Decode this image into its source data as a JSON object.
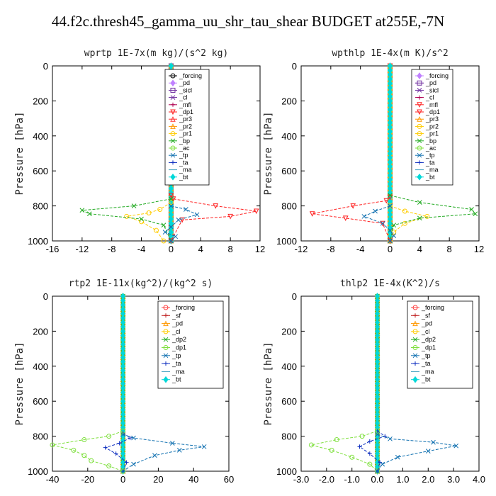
{
  "title": "44.f2c.thresh45_gamma_uu_shr_tau_shear  BUDGET at255E,-7N",
  "chart_data": [
    {
      "type": "line",
      "title": "wprtp   1E-7x(m kg)/(s^2 kg)",
      "ylabel": "Pressure [hPa]",
      "xlim": [
        -16,
        12
      ],
      "ylim": [
        1000,
        0
      ],
      "xticks": [
        -16,
        -12,
        -8,
        -4,
        0,
        4,
        8,
        12
      ],
      "yticks": [
        0,
        200,
        400,
        600,
        800,
        1000
      ],
      "legend_position": "top-right",
      "series": [
        {
          "name": "_forcing",
          "color": "#000000",
          "marker": "o",
          "x": [
            0,
            0
          ],
          "y": [
            0,
            1000
          ]
        },
        {
          "name": "_pd",
          "color": "#c080ff",
          "marker": "d",
          "x": [
            0,
            0
          ],
          "y": [
            0,
            1000
          ]
        },
        {
          "name": "_sicl",
          "color": "#7030a0",
          "marker": "s",
          "x": [
            0,
            0
          ],
          "y": [
            0,
            1000
          ]
        },
        {
          "name": "_cl",
          "color": "#7030a0",
          "marker": "x",
          "x": [
            0,
            0
          ],
          "y": [
            0,
            1000
          ]
        },
        {
          "name": "_mfl",
          "color": "#b00050",
          "marker": "+",
          "x": [
            0,
            0
          ],
          "y": [
            0,
            1000
          ]
        },
        {
          "name": "_dp1",
          "color": "#ff2020",
          "marker": "v",
          "x": [
            0,
            0.3,
            6,
            11.5,
            8,
            1.5,
            0
          ],
          "y": [
            740,
            760,
            800,
            830,
            860,
            880,
            1000
          ]
        },
        {
          "name": "_pr3",
          "color": "#ff3030",
          "marker": "^",
          "x": [
            0,
            0
          ],
          "y": [
            0,
            1000
          ]
        },
        {
          "name": "_pr2",
          "color": "#ff9900",
          "marker": "^",
          "x": [
            0,
            0
          ],
          "y": [
            0,
            1000
          ]
        },
        {
          "name": "_pr1",
          "color": "#ffcc00",
          "marker": "o",
          "x": [
            0,
            -1.5,
            -3,
            -6,
            -4,
            -2,
            -1
          ],
          "y": [
            780,
            820,
            840,
            860,
            890,
            940,
            1000
          ]
        },
        {
          "name": "_bp",
          "color": "#22aa22",
          "marker": "x",
          "x": [
            0,
            -5,
            -12,
            -11,
            -4,
            -1,
            0
          ],
          "y": [
            760,
            800,
            825,
            845,
            875,
            910,
            1000
          ]
        },
        {
          "name": "_ac",
          "color": "#80e040",
          "marker": "o",
          "x": [
            0,
            0
          ],
          "y": [
            0,
            1000
          ]
        },
        {
          "name": "_tp",
          "color": "#1070b0",
          "marker": "x",
          "x": [
            0,
            2,
            3.5,
            1,
            0,
            -0.8,
            0.6,
            0
          ],
          "y": [
            800,
            820,
            850,
            880,
            920,
            950,
            975,
            1000
          ]
        },
        {
          "name": "_ta",
          "color": "#1030c0",
          "marker": "+",
          "x": [
            0,
            0
          ],
          "y": [
            0,
            1000
          ]
        },
        {
          "name": "_ma",
          "color": "#40a0c0",
          "marker": "-",
          "x": [
            0,
            0
          ],
          "y": [
            0,
            1000
          ]
        },
        {
          "name": "_bt",
          "color": "#00d8d8",
          "marker": "d",
          "x": [
            0,
            0
          ],
          "y": [
            0,
            1000
          ]
        }
      ]
    },
    {
      "type": "line",
      "title": "wpthlp   1E-4x(m K)/s^2",
      "ylabel": "Pressure [hPa]",
      "xlim": [
        -12,
        12
      ],
      "ylim": [
        1000,
        0
      ],
      "xticks": [
        -12,
        -8,
        -4,
        0,
        4,
        8,
        12
      ],
      "yticks": [
        0,
        200,
        400,
        600,
        800,
        1000
      ],
      "legend_position": "top-right",
      "series": [
        {
          "name": "_forcing",
          "color": "#c080ff",
          "marker": "d",
          "x": [
            0,
            0
          ],
          "y": [
            0,
            1000
          ]
        },
        {
          "name": "_pd",
          "color": "#7030a0",
          "marker": "s",
          "x": [
            0,
            0
          ],
          "y": [
            0,
            1000
          ]
        },
        {
          "name": "_sicl",
          "color": "#7030a0",
          "marker": "x",
          "x": [
            0,
            0
          ],
          "y": [
            0,
            1000
          ]
        },
        {
          "name": "_cl",
          "color": "#b00050",
          "marker": "+",
          "x": [
            0,
            0
          ],
          "y": [
            0,
            1000
          ]
        },
        {
          "name": "_mfl",
          "color": "#ff2020",
          "marker": "v",
          "x": [
            0,
            0
          ],
          "y": [
            0,
            1000
          ]
        },
        {
          "name": "_dp1",
          "color": "#ff2020",
          "marker": "v",
          "x": [
            0,
            -0.5,
            -5,
            -10.5,
            -6,
            -1,
            0
          ],
          "y": [
            750,
            770,
            800,
            845,
            870,
            900,
            1000
          ]
        },
        {
          "name": "_pr3",
          "color": "#ff9900",
          "marker": "^",
          "x": [
            0,
            0
          ],
          "y": [
            0,
            1000
          ]
        },
        {
          "name": "_pr2",
          "color": "#ffcc00",
          "marker": "o",
          "x": [
            0,
            0
          ],
          "y": [
            0,
            1000
          ]
        },
        {
          "name": "_pr1",
          "color": "#ffcc00",
          "marker": "o",
          "x": [
            0,
            2,
            5,
            2,
            0.5,
            0
          ],
          "y": [
            800,
            830,
            860,
            900,
            950,
            1000
          ]
        },
        {
          "name": "_bp",
          "color": "#22aa22",
          "marker": "x",
          "x": [
            0,
            4,
            11,
            11.5,
            4,
            0.5,
            0
          ],
          "y": [
            740,
            780,
            820,
            845,
            870,
            910,
            1000
          ]
        },
        {
          "name": "_ac",
          "color": "#80e040",
          "marker": "o",
          "x": [
            0,
            0
          ],
          "y": [
            0,
            1000
          ]
        },
        {
          "name": "_tp",
          "color": "#1070b0",
          "marker": "x",
          "x": [
            0,
            -2,
            -3.5,
            -1,
            0,
            0.5,
            0
          ],
          "y": [
            800,
            830,
            860,
            900,
            940,
            970,
            1000
          ]
        },
        {
          "name": "_ta",
          "color": "#1030c0",
          "marker": "+",
          "x": [
            0,
            0
          ],
          "y": [
            0,
            1000
          ]
        },
        {
          "name": "_ma",
          "color": "#40a0c0",
          "marker": "-",
          "x": [
            0,
            0
          ],
          "y": [
            0,
            1000
          ]
        },
        {
          "name": "_bt",
          "color": "#00d8d8",
          "marker": "d",
          "x": [
            0,
            0
          ],
          "y": [
            0,
            1000
          ]
        }
      ]
    },
    {
      "type": "line",
      "title": "rtp2   1E-11x(kg^2)/(kg^2 s)",
      "ylabel": "Pressure [hPa]",
      "xlim": [
        -40,
        60
      ],
      "ylim": [
        1000,
        0
      ],
      "xticks": [
        -40,
        -20,
        0,
        20,
        40,
        60
      ],
      "yticks": [
        0,
        200,
        400,
        600,
        800,
        1000
      ],
      "legend_position": "top-right",
      "series": [
        {
          "name": "_forcing",
          "color": "#ff4040",
          "marker": "o",
          "x": [
            0,
            0
          ],
          "y": [
            0,
            1000
          ]
        },
        {
          "name": "_sf",
          "color": "#c02020",
          "marker": "+",
          "x": [
            0,
            0
          ],
          "y": [
            0,
            1000
          ]
        },
        {
          "name": "_pd",
          "color": "#ff9900",
          "marker": "^",
          "x": [
            0,
            0
          ],
          "y": [
            0,
            1000
          ]
        },
        {
          "name": "_cl",
          "color": "#ffcc00",
          "marker": "o",
          "x": [
            0,
            0
          ],
          "y": [
            0,
            1000
          ]
        },
        {
          "name": "_dp2",
          "color": "#22aa22",
          "marker": "x",
          "x": [
            0,
            0
          ],
          "y": [
            0,
            1000
          ]
        },
        {
          "name": "_dp1",
          "color": "#80e040",
          "marker": "o",
          "x": [
            0,
            -8,
            -22,
            -40,
            -28,
            -22,
            -18,
            -8,
            0
          ],
          "y": [
            770,
            800,
            820,
            850,
            880,
            910,
            940,
            970,
            1000
          ]
        },
        {
          "name": "_tp",
          "color": "#1070b0",
          "marker": "x",
          "x": [
            0,
            6,
            28,
            46,
            32,
            18,
            6,
            0
          ],
          "y": [
            790,
            810,
            840,
            860,
            880,
            910,
            960,
            1000
          ]
        },
        {
          "name": "_ta",
          "color": "#1030c0",
          "marker": "+",
          "x": [
            0,
            4,
            -2,
            -10,
            -4,
            2,
            0
          ],
          "y": [
            780,
            810,
            840,
            865,
            900,
            950,
            1000
          ]
        },
        {
          "name": "_ma",
          "color": "#40a0c0",
          "marker": "-",
          "x": [
            0,
            0
          ],
          "y": [
            0,
            1000
          ]
        },
        {
          "name": "_bt",
          "color": "#00d8d8",
          "marker": "d",
          "x": [
            0,
            0
          ],
          "y": [
            0,
            1000
          ]
        }
      ]
    },
    {
      "type": "line",
      "title": "thlp2   1E-4x(K^2)/s",
      "ylabel": "Pressure [hPa]",
      "xlim": [
        -3.0,
        4.0
      ],
      "ylim": [
        1000,
        0
      ],
      "xticks": [
        -3.0,
        -2.0,
        -1.0,
        0.0,
        1.0,
        2.0,
        3.0,
        4.0
      ],
      "xticklabels": [
        "-3.0",
        "-2.0",
        "-1.0",
        "0.0",
        "1.0",
        "2.0",
        "3.0",
        "4.0"
      ],
      "yticks": [
        0,
        200,
        400,
        600,
        800,
        1000
      ],
      "legend_position": "top-right",
      "series": [
        {
          "name": "_forcing",
          "color": "#ff4040",
          "marker": "o",
          "x": [
            0,
            0
          ],
          "y": [
            0,
            1000
          ]
        },
        {
          "name": "_sf",
          "color": "#c02020",
          "marker": "+",
          "x": [
            0,
            0
          ],
          "y": [
            0,
            1000
          ]
        },
        {
          "name": "_pd",
          "color": "#ff9900",
          "marker": "^",
          "x": [
            0,
            0
          ],
          "y": [
            0,
            1000
          ]
        },
        {
          "name": "_cl",
          "color": "#ffcc00",
          "marker": "o",
          "x": [
            0,
            0
          ],
          "y": [
            0,
            1000
          ]
        },
        {
          "name": "_dp2",
          "color": "#22aa22",
          "marker": "x",
          "x": [
            0,
            0
          ],
          "y": [
            0,
            1000
          ]
        },
        {
          "name": "_dp1",
          "color": "#80e040",
          "marker": "o",
          "x": [
            0,
            -0.6,
            -1.6,
            -2.6,
            -1.8,
            -1.0,
            -0.3,
            0
          ],
          "y": [
            770,
            800,
            820,
            850,
            880,
            920,
            960,
            1000
          ]
        },
        {
          "name": "_tp",
          "color": "#1070b0",
          "marker": "x",
          "x": [
            0,
            0.5,
            2.2,
            3.1,
            2.0,
            0.8,
            0.2,
            0
          ],
          "y": [
            790,
            815,
            835,
            855,
            885,
            920,
            960,
            1000
          ]
        },
        {
          "name": "_ta",
          "color": "#1030c0",
          "marker": "+",
          "x": [
            0,
            0.3,
            -0.3,
            -0.7,
            -0.3,
            0.1,
            0
          ],
          "y": [
            770,
            800,
            830,
            860,
            900,
            950,
            1000
          ]
        },
        {
          "name": "_ma",
          "color": "#40a0c0",
          "marker": "-",
          "x": [
            0,
            0
          ],
          "y": [
            0,
            1000
          ]
        },
        {
          "name": "_bt",
          "color": "#00d8d8",
          "marker": "d",
          "x": [
            0,
            0
          ],
          "y": [
            0,
            1000
          ]
        }
      ]
    }
  ]
}
